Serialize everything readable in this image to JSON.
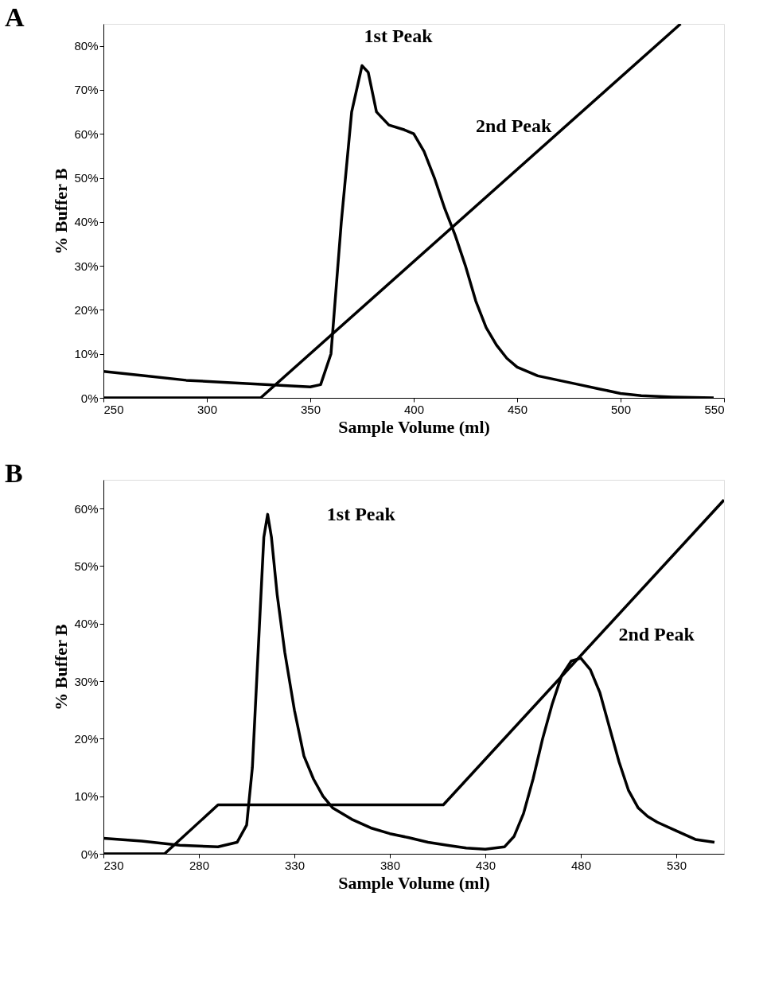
{
  "chart_data": [
    {
      "type": "line",
      "title": "A",
      "xlabel": "Sample Volume (ml)",
      "ylabel": "% Buffer B",
      "xlim": [
        250,
        550
      ],
      "xticks": [
        250,
        300,
        350,
        400,
        450,
        500,
        550
      ],
      "ylim": [
        0,
        85
      ],
      "yticks": [
        {
          "value": 0,
          "label": "0%"
        },
        {
          "value": 10,
          "label": "10%"
        },
        {
          "value": 20,
          "label": "20%"
        },
        {
          "value": 30,
          "label": "30%"
        },
        {
          "value": 40,
          "label": "40%"
        },
        {
          "value": 50,
          "label": "50%"
        },
        {
          "value": 60,
          "label": "60%"
        },
        {
          "value": 70,
          "label": "70%"
        },
        {
          "value": 80,
          "label": "80%"
        }
      ],
      "series": [
        {
          "color": "#000000",
          "x": [
            250,
            326,
            529
          ],
          "values": [
            0,
            0,
            85
          ]
        },
        {
          "color": "#000000",
          "x": [
            250,
            270,
            290,
            310,
            330,
            350,
            355,
            360,
            365,
            370,
            375,
            378,
            382,
            388,
            395,
            400,
            405,
            410,
            415,
            420,
            425,
            430,
            435,
            440,
            445,
            450,
            460,
            470,
            480,
            490,
            500,
            510,
            525,
            545
          ],
          "values": [
            6,
            5,
            4,
            3.5,
            3,
            2.5,
            3,
            10,
            40,
            65,
            75.5,
            74,
            65,
            62,
            61,
            60,
            56,
            50,
            43,
            37,
            30,
            22,
            16,
            12,
            9,
            7,
            5,
            4,
            3,
            2,
            1,
            0.5,
            0.2,
            0
          ]
        }
      ],
      "annotations": [
        "1st Peak",
        "2nd Peak"
      ]
    },
    {
      "type": "line",
      "title": "B",
      "xlabel": "Sample Volume (ml)",
      "ylabel": "% Buffer B",
      "xlim": [
        230,
        555
      ],
      "xticks": [
        230,
        280,
        330,
        380,
        430,
        480,
        530
      ],
      "ylim": [
        0,
        65
      ],
      "yticks": [
        {
          "value": 0,
          "label": "0%"
        },
        {
          "value": 10,
          "label": "10%"
        },
        {
          "value": 20,
          "label": "20%"
        },
        {
          "value": 30,
          "label": "30%"
        },
        {
          "value": 40,
          "label": "40%"
        },
        {
          "value": 50,
          "label": "50%"
        },
        {
          "value": 60,
          "label": "60%"
        }
      ],
      "series": [
        {
          "color": "#000000",
          "x": [
            230,
            262,
            290,
            408,
            555
          ],
          "values": [
            0,
            0,
            8.5,
            8.5,
            61.5
          ]
        },
        {
          "color": "#000000",
          "x": [
            230,
            250,
            270,
            290,
            300,
            305,
            308,
            311,
            314,
            316,
            318,
            321,
            325,
            330,
            335,
            340,
            345,
            350,
            360,
            370,
            380,
            390,
            400,
            410,
            420,
            430,
            440,
            445,
            450,
            455,
            460,
            465,
            470,
            475,
            480,
            485,
            490,
            495,
            500,
            505,
            510,
            515,
            520,
            530,
            540,
            550
          ],
          "values": [
            2.7,
            2.2,
            1.5,
            1.2,
            2,
            5,
            15,
            35,
            55,
            59,
            55,
            45,
            35,
            25,
            17,
            13,
            10,
            8,
            6,
            4.5,
            3.5,
            2.8,
            2,
            1.5,
            1,
            0.8,
            1.2,
            3,
            7,
            13,
            20,
            26,
            31,
            33.5,
            34,
            32,
            28,
            22,
            16,
            11,
            8,
            6.5,
            5.5,
            4,
            2.5,
            2
          ]
        }
      ],
      "annotations": [
        "1st Peak",
        "2nd Peak"
      ]
    }
  ]
}
